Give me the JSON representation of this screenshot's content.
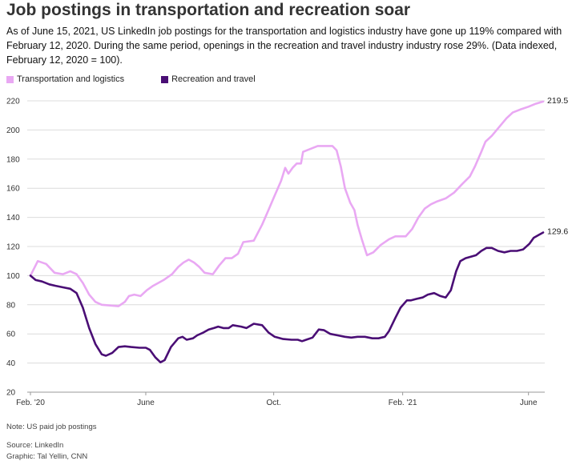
{
  "title": "Job postings in transportation and recreation soar",
  "subtitle": "As of June 15, 2021, US LinkedIn job postings for the transportation and logistics industry have gone up 119% compared with February 12, 2020. During the same period, openings in the recreation and travel industry industry rose 29%. (Data indexed, February 12, 2020 = 100).",
  "note": "Note: US paid job postings",
  "source": "Source: LinkedIn",
  "credit": "Graphic: Tal Yellin, CNN",
  "chart_data": {
    "type": "line",
    "title": "Job postings in transportation and recreation soar",
    "xlabel": "",
    "ylabel": "",
    "x_range": [
      "2020-02-12",
      "2021-06-15"
    ],
    "ylim": [
      20,
      220
    ],
    "yticks": [
      20,
      40,
      60,
      80,
      100,
      120,
      140,
      160,
      180,
      200,
      220
    ],
    "xticks": [
      {
        "label": "Feb. '20",
        "date": "2020-02-12"
      },
      {
        "label": "June",
        "date": "2020-06-01"
      },
      {
        "label": "Oct.",
        "date": "2020-10-01"
      },
      {
        "label": "Feb. '21",
        "date": "2021-02-01"
      },
      {
        "label": "June",
        "date": "2021-06-01"
      }
    ],
    "grid": true,
    "legend_position": "top-left",
    "series": [
      {
        "name": "Transportation and logistics",
        "color": "#e9a8f3",
        "end_label": "219.5",
        "points": [
          [
            "2020-02-12",
            100
          ],
          [
            "2020-02-19",
            110
          ],
          [
            "2020-02-27",
            108
          ],
          [
            "2020-03-06",
            102
          ],
          [
            "2020-03-14",
            101
          ],
          [
            "2020-03-21",
            103
          ],
          [
            "2020-03-27",
            101
          ],
          [
            "2020-04-02",
            95
          ],
          [
            "2020-04-08",
            87
          ],
          [
            "2020-04-14",
            82
          ],
          [
            "2020-04-20",
            80
          ],
          [
            "2020-04-28",
            79.5
          ],
          [
            "2020-05-06",
            79
          ],
          [
            "2020-05-12",
            82
          ],
          [
            "2020-05-16",
            86
          ],
          [
            "2020-05-21",
            87
          ],
          [
            "2020-05-27",
            86
          ],
          [
            "2020-06-02",
            90
          ],
          [
            "2020-06-08",
            93
          ],
          [
            "2020-06-18",
            97
          ],
          [
            "2020-06-26",
            101
          ],
          [
            "2020-07-02",
            106
          ],
          [
            "2020-07-07",
            109
          ],
          [
            "2020-07-12",
            111
          ],
          [
            "2020-07-17",
            109
          ],
          [
            "2020-07-22",
            106
          ],
          [
            "2020-07-27",
            102
          ],
          [
            "2020-08-04",
            101
          ],
          [
            "2020-08-10",
            107
          ],
          [
            "2020-08-16",
            112
          ],
          [
            "2020-08-22",
            112
          ],
          [
            "2020-08-28",
            115
          ],
          [
            "2020-09-02",
            123
          ],
          [
            "2020-09-12",
            124
          ],
          [
            "2020-09-20",
            135
          ],
          [
            "2020-09-26",
            145
          ],
          [
            "2020-10-02",
            155
          ],
          [
            "2020-10-08",
            165
          ],
          [
            "2020-10-12",
            174
          ],
          [
            "2020-10-15",
            170
          ],
          [
            "2020-10-19",
            174
          ],
          [
            "2020-10-23",
            177
          ],
          [
            "2020-10-27",
            177
          ],
          [
            "2020-10-29",
            185
          ],
          [
            "2020-11-05",
            187
          ],
          [
            "2020-11-12",
            189
          ],
          [
            "2020-11-19",
            189
          ],
          [
            "2020-11-26",
            189
          ],
          [
            "2020-11-30",
            186
          ],
          [
            "2020-12-04",
            175
          ],
          [
            "2020-12-08",
            160
          ],
          [
            "2020-12-13",
            150
          ],
          [
            "2020-12-17",
            145
          ],
          [
            "2020-12-20",
            135
          ],
          [
            "2020-12-24",
            125
          ],
          [
            "2020-12-29",
            114
          ],
          [
            "2021-01-04",
            116
          ],
          [
            "2021-01-11",
            121
          ],
          [
            "2021-01-19",
            125
          ],
          [
            "2021-01-25",
            127
          ],
          [
            "2021-02-04",
            127
          ],
          [
            "2021-02-10",
            132
          ],
          [
            "2021-02-16",
            140
          ],
          [
            "2021-02-22",
            146
          ],
          [
            "2021-02-28",
            149
          ],
          [
            "2021-03-06",
            151
          ],
          [
            "2021-03-14",
            153
          ],
          [
            "2021-03-22",
            157
          ],
          [
            "2021-03-30",
            163
          ],
          [
            "2021-04-06",
            168
          ],
          [
            "2021-04-11",
            175
          ],
          [
            "2021-04-17",
            185
          ],
          [
            "2021-04-21",
            192
          ],
          [
            "2021-04-27",
            196
          ],
          [
            "2021-05-04",
            202
          ],
          [
            "2021-05-11",
            208
          ],
          [
            "2021-05-17",
            212
          ],
          [
            "2021-05-24",
            214
          ],
          [
            "2021-06-01",
            216
          ],
          [
            "2021-06-08",
            218
          ],
          [
            "2021-06-15",
            219.5
          ]
        ]
      },
      {
        "name": "Recreation and travel",
        "color": "#4a0e75",
        "end_label": "129.6",
        "points": [
          [
            "2020-02-12",
            100
          ],
          [
            "2020-02-17",
            97
          ],
          [
            "2020-02-23",
            96
          ],
          [
            "2020-03-01",
            94
          ],
          [
            "2020-03-07",
            93
          ],
          [
            "2020-03-14",
            92
          ],
          [
            "2020-03-21",
            91
          ],
          [
            "2020-03-27",
            88
          ],
          [
            "2020-04-02",
            78
          ],
          [
            "2020-04-08",
            64
          ],
          [
            "2020-04-14",
            53
          ],
          [
            "2020-04-20",
            46
          ],
          [
            "2020-04-24",
            45
          ],
          [
            "2020-04-30",
            47
          ],
          [
            "2020-05-06",
            51
          ],
          [
            "2020-05-12",
            51.5
          ],
          [
            "2020-05-18",
            51
          ],
          [
            "2020-05-26",
            50.5
          ],
          [
            "2020-06-01",
            50.5
          ],
          [
            "2020-06-05",
            49
          ],
          [
            "2020-06-10",
            44
          ],
          [
            "2020-06-15",
            40.5
          ],
          [
            "2020-06-19",
            42
          ],
          [
            "2020-06-25",
            51
          ],
          [
            "2020-07-02",
            57
          ],
          [
            "2020-07-06",
            58
          ],
          [
            "2020-07-10",
            56
          ],
          [
            "2020-07-16",
            57
          ],
          [
            "2020-07-20",
            59
          ],
          [
            "2020-07-26",
            61
          ],
          [
            "2020-07-31",
            63
          ],
          [
            "2020-08-05",
            64
          ],
          [
            "2020-08-09",
            65
          ],
          [
            "2020-08-14",
            64
          ],
          [
            "2020-08-19",
            64
          ],
          [
            "2020-08-23",
            66
          ],
          [
            "2020-08-31",
            65
          ],
          [
            "2020-09-05",
            64
          ],
          [
            "2020-09-12",
            67
          ],
          [
            "2020-09-20",
            66
          ],
          [
            "2020-09-26",
            61
          ],
          [
            "2020-10-02",
            58
          ],
          [
            "2020-10-10",
            56.5
          ],
          [
            "2020-10-18",
            56
          ],
          [
            "2020-10-24",
            56
          ],
          [
            "2020-10-28",
            55
          ],
          [
            "2020-11-01",
            56
          ],
          [
            "2020-11-07",
            57.5
          ],
          [
            "2020-11-13",
            63
          ],
          [
            "2020-11-18",
            62.5
          ],
          [
            "2020-11-24",
            60
          ],
          [
            "2020-12-01",
            59
          ],
          [
            "2020-12-08",
            58
          ],
          [
            "2020-12-14",
            57.5
          ],
          [
            "2020-12-20",
            58
          ],
          [
            "2020-12-27",
            58
          ],
          [
            "2021-01-03",
            57
          ],
          [
            "2021-01-09",
            57
          ],
          [
            "2021-01-15",
            58
          ],
          [
            "2021-01-19",
            62
          ],
          [
            "2021-01-25",
            71
          ],
          [
            "2021-01-30",
            78
          ],
          [
            "2021-02-05",
            83
          ],
          [
            "2021-02-09",
            83
          ],
          [
            "2021-02-14",
            84
          ],
          [
            "2021-02-20",
            85
          ],
          [
            "2021-02-25",
            87
          ],
          [
            "2021-03-03",
            88
          ],
          [
            "2021-03-09",
            86
          ],
          [
            "2021-03-14",
            85
          ],
          [
            "2021-03-19",
            90
          ],
          [
            "2021-03-24",
            103
          ],
          [
            "2021-03-28",
            110
          ],
          [
            "2021-04-02",
            112
          ],
          [
            "2021-04-07",
            113
          ],
          [
            "2021-04-12",
            114
          ],
          [
            "2021-04-17",
            117
          ],
          [
            "2021-04-22",
            119
          ],
          [
            "2021-04-27",
            119
          ],
          [
            "2021-05-03",
            117
          ],
          [
            "2021-05-09",
            116
          ],
          [
            "2021-05-15",
            117
          ],
          [
            "2021-05-21",
            117
          ],
          [
            "2021-05-27",
            118
          ],
          [
            "2021-06-02",
            122
          ],
          [
            "2021-06-06",
            126
          ],
          [
            "2021-06-11",
            128
          ],
          [
            "2021-06-15",
            129.6
          ]
        ]
      }
    ]
  }
}
